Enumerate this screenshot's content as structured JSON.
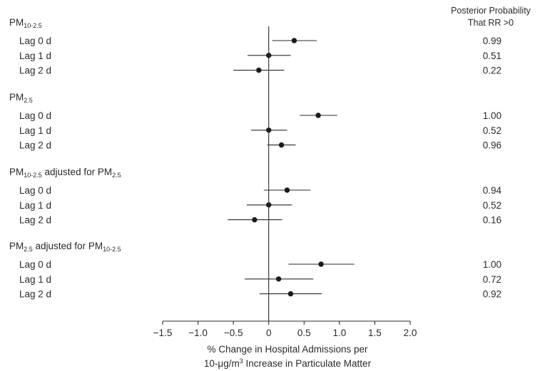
{
  "chart_data": {
    "type": "forest",
    "header": [
      "Posterior Probability",
      "That RR >0"
    ],
    "groups": [
      {
        "title": "PM",
        "title_sub": "10-2.5",
        "title_rest": "",
        "title_rest_sub": "",
        "rows": [
          {
            "label": "Lag 0 d",
            "estimate": 0.36,
            "lower": 0.05,
            "upper": 0.68,
            "prob": "0.99"
          },
          {
            "label": "Lag 1 d",
            "estimate": 0.0,
            "lower": -0.3,
            "upper": 0.31,
            "prob": "0.51"
          },
          {
            "label": "Lag 2 d",
            "estimate": -0.14,
            "lower": -0.5,
            "upper": 0.22,
            "prob": "0.22"
          }
        ]
      },
      {
        "title": "PM",
        "title_sub": "2.5",
        "title_rest": "",
        "title_rest_sub": "",
        "rows": [
          {
            "label": "Lag 0 d",
            "estimate": 0.7,
            "lower": 0.44,
            "upper": 0.97,
            "prob": "1.00"
          },
          {
            "label": "Lag 1 d",
            "estimate": 0.0,
            "lower": -0.25,
            "upper": 0.26,
            "prob": "0.52"
          },
          {
            "label": "Lag 2 d",
            "estimate": 0.18,
            "lower": -0.02,
            "upper": 0.38,
            "prob": "0.96"
          }
        ]
      },
      {
        "title": "PM",
        "title_sub": "10-2.5",
        "title_rest": " adjusted for PM",
        "title_rest_sub": "2.5",
        "rows": [
          {
            "label": "Lag 0 d",
            "estimate": 0.26,
            "lower": -0.07,
            "upper": 0.59,
            "prob": "0.94"
          },
          {
            "label": "Lag 1 d",
            "estimate": 0.0,
            "lower": -0.31,
            "upper": 0.33,
            "prob": "0.52"
          },
          {
            "label": "Lag 2 d",
            "estimate": -0.2,
            "lower": -0.58,
            "upper": 0.19,
            "prob": "0.16"
          }
        ]
      },
      {
        "title": "PM",
        "title_sub": "2.5",
        "title_rest": " adjusted for PM",
        "title_rest_sub": "10-2.5",
        "rows": [
          {
            "label": "Lag 0 d",
            "estimate": 0.74,
            "lower": 0.28,
            "upper": 1.21,
            "prob": "1.00"
          },
          {
            "label": "Lag 1 d",
            "estimate": 0.14,
            "lower": -0.34,
            "upper": 0.63,
            "prob": "0.72"
          },
          {
            "label": "Lag 2 d",
            "estimate": 0.31,
            "lower": -0.13,
            "upper": 0.75,
            "prob": "0.92"
          }
        ]
      }
    ],
    "x_ticks": [
      -1.5,
      -1.0,
      -0.5,
      0,
      0.5,
      1.0,
      1.5,
      2.0
    ],
    "x_tick_labels": [
      "−1.5",
      "−1.0",
      "−0.5",
      "0",
      "0.5",
      "1.0",
      "1.5",
      "2.0"
    ],
    "xlim": [
      -1.5,
      2.0
    ],
    "reference_line": 0,
    "xlabel_line1": "% Change in Hospital Admissions per",
    "xlabel_line2_pre": "10-μg/m",
    "xlabel_line2_sup": "3",
    "xlabel_line2_post": " Increase in Particulate Matter",
    "grid": false,
    "legend": false
  }
}
